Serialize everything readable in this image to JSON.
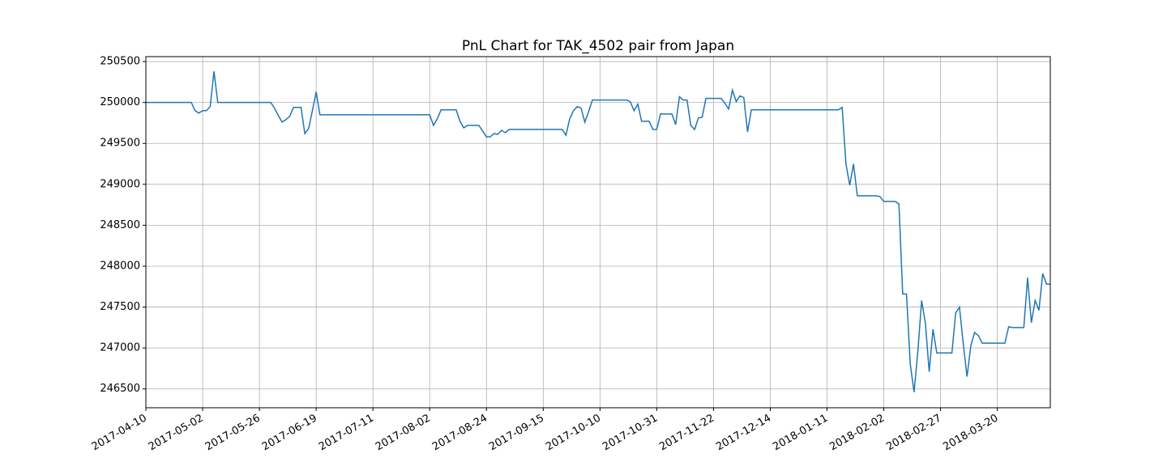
{
  "chart_data": {
    "type": "line",
    "title": "PnL Chart for TAK_4502 pair from Japan",
    "color": "#1f77b4",
    "grid": true,
    "ylim": [
      246270,
      250560
    ],
    "yticks": [
      246500,
      247000,
      247500,
      248000,
      248500,
      249000,
      249500,
      250000,
      250500
    ],
    "categories": [
      "2017-04-10",
      null,
      null,
      null,
      null,
      null,
      null,
      null,
      null,
      null,
      null,
      null,
      null,
      null,
      null,
      "2017-05-02",
      null,
      null,
      null,
      null,
      null,
      null,
      null,
      null,
      null,
      null,
      null,
      null,
      null,
      null,
      "2017-05-26",
      null,
      null,
      null,
      null,
      null,
      null,
      null,
      null,
      null,
      null,
      null,
      null,
      null,
      null,
      "2017-06-19",
      null,
      null,
      null,
      null,
      null,
      null,
      null,
      null,
      null,
      null,
      null,
      null,
      null,
      null,
      "2017-07-11",
      null,
      null,
      null,
      null,
      null,
      null,
      null,
      null,
      null,
      null,
      null,
      null,
      null,
      null,
      "2017-08-02",
      null,
      null,
      null,
      null,
      null,
      null,
      null,
      null,
      null,
      null,
      null,
      null,
      null,
      null,
      "2017-08-24",
      null,
      null,
      null,
      null,
      null,
      null,
      null,
      null,
      null,
      null,
      null,
      null,
      null,
      null,
      "2017-09-15",
      null,
      null,
      null,
      null,
      null,
      null,
      null,
      null,
      null,
      null,
      null,
      null,
      null,
      null,
      "2017-10-10",
      null,
      null,
      null,
      null,
      null,
      null,
      null,
      null,
      null,
      null,
      null,
      null,
      null,
      null,
      "2017-10-31",
      null,
      null,
      null,
      null,
      null,
      null,
      null,
      null,
      null,
      null,
      null,
      null,
      null,
      null,
      "2017-11-22",
      null,
      null,
      null,
      null,
      null,
      null,
      null,
      null,
      null,
      null,
      null,
      null,
      null,
      null,
      "2017-12-14",
      null,
      null,
      null,
      null,
      null,
      null,
      null,
      null,
      null,
      null,
      null,
      null,
      null,
      null,
      "2018-01-11",
      null,
      null,
      null,
      null,
      null,
      null,
      null,
      null,
      null,
      null,
      null,
      null,
      null,
      null,
      "2018-02-02",
      null,
      null,
      null,
      null,
      null,
      null,
      null,
      null,
      null,
      null,
      null,
      null,
      null,
      null,
      "2018-02-27",
      null,
      null,
      null,
      null,
      null,
      null,
      null,
      null,
      null,
      null,
      null,
      null,
      null,
      null,
      "2018-03-20",
      null,
      null,
      null,
      null,
      null,
      null,
      null,
      null,
      null,
      null,
      null,
      null,
      null,
      null
    ],
    "values": [
      250000,
      250000,
      250000,
      250000,
      250000,
      250000,
      250000,
      250000,
      250000,
      250000,
      250000,
      250000,
      250000,
      249900,
      249870,
      249900,
      249900,
      249950,
      250380,
      250000,
      250000,
      250000,
      250000,
      250000,
      250000,
      250000,
      250000,
      250000,
      250000,
      250000,
      250000,
      250000,
      250000,
      250000,
      249930,
      249840,
      249760,
      249790,
      249830,
      249940,
      249940,
      249940,
      249620,
      249680,
      249900,
      250130,
      249850,
      249850,
      249850,
      249850,
      249850,
      249850,
      249850,
      249850,
      249850,
      249850,
      249850,
      249850,
      249850,
      249850,
      249850,
      249850,
      249850,
      249850,
      249850,
      249850,
      249850,
      249850,
      249850,
      249850,
      249850,
      249850,
      249850,
      249850,
      249850,
      249850,
      249720,
      249800,
      249910,
      249910,
      249910,
      249910,
      249910,
      249770,
      249690,
      249720,
      249720,
      249720,
      249720,
      249650,
      249580,
      249580,
      249620,
      249610,
      249660,
      249630,
      249670,
      249670,
      249670,
      249670,
      249670,
      249670,
      249670,
      249670,
      249670,
      249670,
      249670,
      249670,
      249670,
      249670,
      249670,
      249600,
      249800,
      249900,
      249950,
      249930,
      249760,
      249890,
      250030,
      250030,
      250030,
      250030,
      250030,
      250030,
      250030,
      250030,
      250030,
      250030,
      250010,
      249900,
      249980,
      249770,
      249770,
      249770,
      249670,
      249670,
      249860,
      249860,
      249860,
      249860,
      249730,
      250070,
      250030,
      250030,
      249720,
      249670,
      249810,
      249820,
      250050,
      250050,
      250050,
      250050,
      250050,
      249990,
      249920,
      250150,
      250010,
      250080,
      250060,
      249640,
      249910,
      249910,
      249910,
      249910,
      249910,
      249910,
      249910,
      249910,
      249910,
      249910,
      249910,
      249910,
      249910,
      249910,
      249910,
      249910,
      249910,
      249910,
      249910,
      249910,
      249910,
      249910,
      249910,
      249910,
      249940,
      249250,
      248990,
      249250,
      248860,
      248860,
      248860,
      248860,
      248860,
      248860,
      248850,
      248790,
      248790,
      248790,
      248790,
      248760,
      247660,
      247660,
      246800,
      246460,
      246960,
      247580,
      247300,
      246710,
      247230,
      246940,
      246940,
      246940,
      246940,
      246940,
      247430,
      247500,
      247050,
      246650,
      247030,
      247190,
      247150,
      247060,
      247060,
      247060,
      247060,
      247060,
      247060,
      247060,
      247260,
      247250,
      247250,
      247250,
      247250,
      247860,
      247310,
      247580,
      247460,
      247910,
      247780,
      247780
    ]
  }
}
